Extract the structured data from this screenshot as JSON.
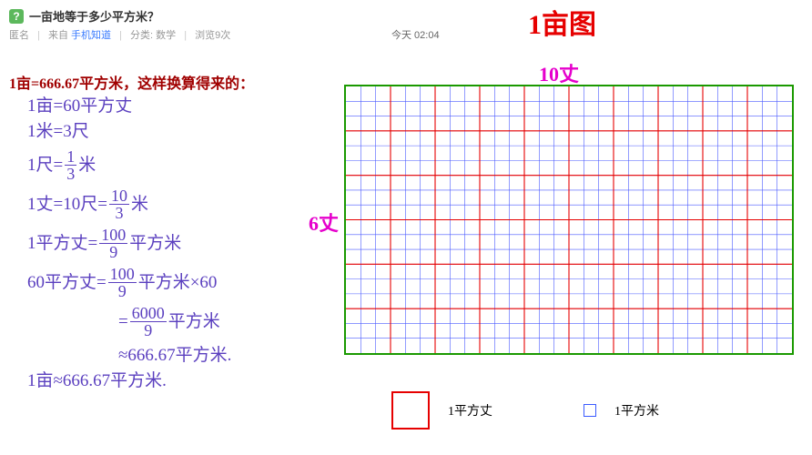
{
  "header": {
    "icon_text": "?",
    "title": "一亩地等于多少平方米？"
  },
  "meta": {
    "anon": "匿名",
    "from": "来自",
    "source": "手机知道",
    "cat_label": "分类:",
    "category": "数学",
    "views_label": "浏览",
    "views_count": "9次"
  },
  "timestamp": "今天 02:04",
  "diagram_title": "1亩图",
  "heading": "1亩=666.67平方米，这样换算得来的：",
  "calc": {
    "l1": "1亩=60平方丈",
    "l2": "1米=3尺",
    "l3a": "1尺=",
    "l3n": "1",
    "l3d": "3",
    "l3b": "米",
    "l4a": "1丈=10尺=",
    "l4n": "10",
    "l4d": "3",
    "l4b": "米",
    "l5a": "1平方丈=",
    "l5n": "100",
    "l5d": "9",
    "l5b": "平方米",
    "l6a": "60平方丈=",
    "l6n": "100",
    "l6d": "9",
    "l6b": "平方米×60",
    "l7a": "=",
    "l7n": "6000",
    "l7d": "9",
    "l7b": "平方米",
    "l8": "≈666.67平方米.",
    "l9": "1亩≈666.67平方米."
  },
  "diagram": {
    "label_top": "10丈",
    "label_left": "6丈",
    "cols_zhang": 10,
    "rows_zhang": 6,
    "chi_per_zhang": 3,
    "border_color": "#1a9900",
    "zhang_color": "#e60000",
    "chi_color": "#4a5aff",
    "chi_stroke": 0.6,
    "zhang_stroke": 1.1
  },
  "legend": {
    "red_label": "1平方丈",
    "blue_label": "1平方米"
  }
}
